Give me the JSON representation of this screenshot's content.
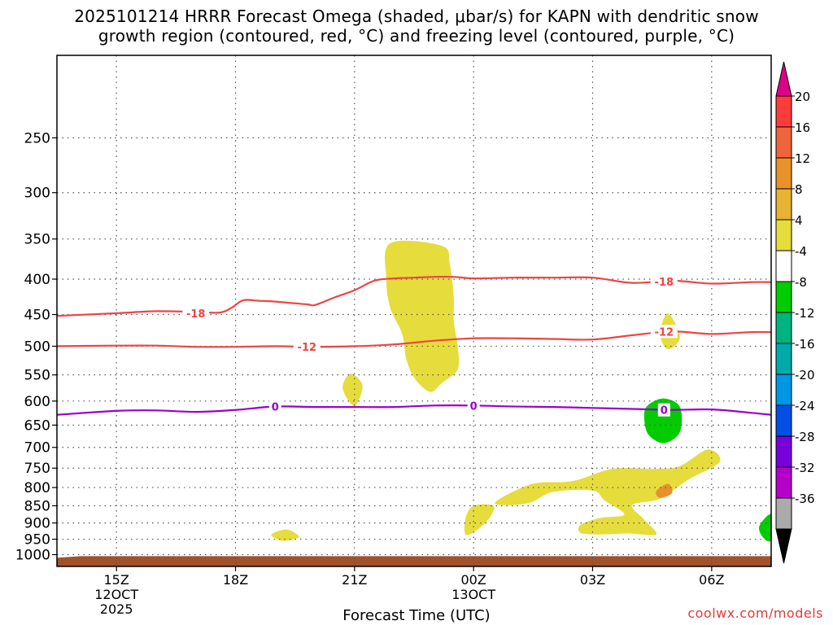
{
  "header": {
    "title_line1": "2025101214 HRRR Forecast Omega (shaded, μbar/s) for KAPN with dendritic snow",
    "title_line2": "growth region (contoured, red, °C) and freezing level (contoured, purple, °C)"
  },
  "footer": {
    "credit": "coolwx.com/models"
  },
  "chart_data": {
    "type": "cross-section",
    "xlabel": "Forecast Time (UTC)",
    "ylabel": "",
    "y_scale": "log-pressure (inverted)",
    "ylim_hpa": [
      1040,
      190
    ],
    "xlim_hours": [
      -1.5,
      16.5
    ],
    "x_ticks": [
      {
        "h": 0,
        "label": "15Z",
        "sub1": "12OCT",
        "sub2": "2025"
      },
      {
        "h": 3,
        "label": "18Z",
        "sub1": "",
        "sub2": ""
      },
      {
        "h": 6,
        "label": "21Z",
        "sub1": "",
        "sub2": ""
      },
      {
        "h": 9,
        "label": "00Z",
        "sub1": "13OCT",
        "sub2": ""
      },
      {
        "h": 12,
        "label": "03Z",
        "sub1": "",
        "sub2": ""
      },
      {
        "h": 15,
        "label": "06Z",
        "sub1": "",
        "sub2": ""
      }
    ],
    "y_ticks": [
      "250",
      "300",
      "350",
      "400",
      "450",
      "500",
      "550",
      "600",
      "650",
      "700",
      "750",
      "800",
      "850",
      "900",
      "950",
      "1000"
    ],
    "grid": true,
    "ground_color": "#a0522d",
    "ground_top_hpa": 1005,
    "contours": [
      {
        "label": "-18",
        "color": "#ee4444",
        "points": [
          [
            -1.5,
            452
          ],
          [
            0,
            448
          ],
          [
            1,
            445
          ],
          [
            2,
            446
          ],
          [
            2.6,
            447
          ],
          [
            2.9,
            440
          ],
          [
            3.2,
            429
          ],
          [
            3.6,
            430
          ],
          [
            4,
            431
          ],
          [
            4.8,
            435
          ],
          [
            5,
            436
          ],
          [
            5.5,
            425
          ],
          [
            6,
            415
          ],
          [
            6.5,
            402
          ],
          [
            7,
            399
          ],
          [
            7.5,
            398
          ],
          [
            8,
            397
          ],
          [
            8.5,
            397
          ],
          [
            9,
            399
          ],
          [
            10,
            398
          ],
          [
            11,
            398
          ],
          [
            12,
            398
          ],
          [
            13,
            405
          ],
          [
            14,
            402
          ],
          [
            15,
            406
          ],
          [
            16,
            404
          ],
          [
            16.5,
            404
          ]
        ],
        "label_at": [
          [
            2,
            448
          ],
          [
            13.8,
            403
          ]
        ]
      },
      {
        "label": "-12",
        "color": "#ee4444",
        "points": [
          [
            -1.5,
            500
          ],
          [
            0,
            499
          ],
          [
            1,
            499
          ],
          [
            2,
            501
          ],
          [
            3,
            501
          ],
          [
            4,
            500
          ],
          [
            5,
            501
          ],
          [
            6,
            500
          ],
          [
            7,
            497
          ],
          [
            8,
            491
          ],
          [
            9,
            487
          ],
          [
            10,
            487
          ],
          [
            11,
            488
          ],
          [
            12,
            489
          ],
          [
            13,
            482
          ],
          [
            14,
            476
          ],
          [
            15,
            480
          ],
          [
            16,
            477
          ],
          [
            16.5,
            477
          ]
        ],
        "label_at": [
          [
            4.8,
            501
          ],
          [
            13.8,
            476
          ]
        ]
      },
      {
        "label": "0",
        "color": "#9a00cc",
        "points": [
          [
            -1.5,
            628
          ],
          [
            0,
            620
          ],
          [
            1,
            619
          ],
          [
            2,
            622
          ],
          [
            3,
            618
          ],
          [
            4,
            611
          ],
          [
            5,
            612
          ],
          [
            6,
            612
          ],
          [
            7,
            612
          ],
          [
            8,
            609
          ],
          [
            9,
            609
          ],
          [
            10,
            611
          ],
          [
            11,
            612
          ],
          [
            12,
            614
          ],
          [
            13,
            616
          ],
          [
            14,
            618
          ],
          [
            15,
            617
          ],
          [
            16,
            624
          ],
          [
            16.5,
            628
          ]
        ],
        "label_at": [
          [
            4,
            611
          ],
          [
            9,
            609
          ],
          [
            13.8,
            618
          ]
        ]
      }
    ],
    "omega_regions": [
      {
        "color": "#e6dc3c",
        "value_range": "4 to 8",
        "points": [
          [
            6.9,
            355
          ],
          [
            8.2,
            358
          ],
          [
            8.4,
            380
          ],
          [
            8.5,
            425
          ],
          [
            8.5,
            460
          ],
          [
            8.6,
            500
          ],
          [
            8.6,
            540
          ],
          [
            8.2,
            565
          ],
          [
            7.9,
            582
          ],
          [
            7.5,
            555
          ],
          [
            7.3,
            520
          ],
          [
            7.2,
            480
          ],
          [
            6.9,
            440
          ],
          [
            6.8,
            400
          ]
        ]
      },
      {
        "color": "#e6dc3c",
        "value_range": "4 to 8",
        "points": [
          [
            5.9,
            548
          ],
          [
            6.2,
            570
          ],
          [
            6.0,
            610
          ],
          [
            5.7,
            575
          ]
        ]
      },
      {
        "color": "#e6dc3c",
        "value_range": "4 to 8",
        "points": [
          [
            3.9,
            936
          ],
          [
            4.3,
            920
          ],
          [
            4.6,
            943
          ],
          [
            4.2,
            955
          ]
        ]
      },
      {
        "color": "#e6dc3c",
        "value_range": "4 to 8",
        "points": [
          [
            9.0,
            850
          ],
          [
            9.5,
            850
          ],
          [
            9.4,
            885
          ],
          [
            9.1,
            920
          ],
          [
            8.8,
            935
          ],
          [
            8.8,
            885
          ]
        ]
      },
      {
        "color": "#e6dc3c",
        "value_range": "4 to 8",
        "points": [
          [
            9.6,
            835
          ],
          [
            10.5,
            790
          ],
          [
            11.5,
            783
          ],
          [
            12.5,
            752
          ],
          [
            13.6,
            752
          ],
          [
            14.2,
            745
          ],
          [
            14.9,
            705
          ],
          [
            15.2,
            735
          ],
          [
            14.4,
            780
          ],
          [
            13.7,
            830
          ],
          [
            13.0,
            848
          ],
          [
            13.3,
            890
          ],
          [
            13.6,
            935
          ],
          [
            12.9,
            932
          ],
          [
            12.2,
            935
          ],
          [
            11.7,
            930
          ],
          [
            11.7,
            905
          ],
          [
            12.2,
            885
          ],
          [
            12.8,
            875
          ],
          [
            12.3,
            835
          ],
          [
            12.0,
            808
          ],
          [
            11.0,
            812
          ],
          [
            10.4,
            842
          ],
          [
            9.7,
            848
          ]
        ]
      },
      {
        "color": "#e6dc3c",
        "value_range": "4 to 8",
        "points": [
          [
            13.9,
            448
          ],
          [
            14.2,
            485
          ],
          [
            13.9,
            505
          ],
          [
            13.7,
            480
          ]
        ]
      },
      {
        "color": "#e8922a",
        "value_range": "8 to 12",
        "points": [
          [
            13.9,
            790
          ],
          [
            14.0,
            815
          ],
          [
            13.7,
            828
          ],
          [
            13.6,
            810
          ]
        ]
      },
      {
        "color": "#00cc00",
        "value_range": "-8 to -4",
        "points": [
          [
            13.4,
            608
          ],
          [
            13.8,
            595
          ],
          [
            14.2,
            612
          ],
          [
            14.2,
            665
          ],
          [
            13.8,
            690
          ],
          [
            13.4,
            670
          ],
          [
            13.3,
            630
          ]
        ]
      },
      {
        "color": "#00cc00",
        "value_range": "-8 to -4",
        "points": [
          [
            16.5,
            875
          ],
          [
            16.5,
            952
          ],
          [
            16.3,
            945
          ],
          [
            16.2,
            910
          ]
        ]
      }
    ],
    "colorbar": {
      "labels": [
        "20",
        "16",
        "12",
        "8",
        "4",
        "-4",
        "-8",
        "-12",
        "-16",
        "-20",
        "-24",
        "-28",
        "-32",
        "-36"
      ],
      "colors": [
        "#ff3c3c",
        "#f0643c",
        "#e8922a",
        "#e6b432",
        "#e6dc3c",
        "#ffffff",
        "#00cc00",
        "#00b482",
        "#00aaaa",
        "#0096e6",
        "#0050e6",
        "#7800dc",
        "#b400c8",
        "#aaaaaa"
      ],
      "top_color": "#dd0088",
      "bottom_color": "#000000"
    }
  }
}
